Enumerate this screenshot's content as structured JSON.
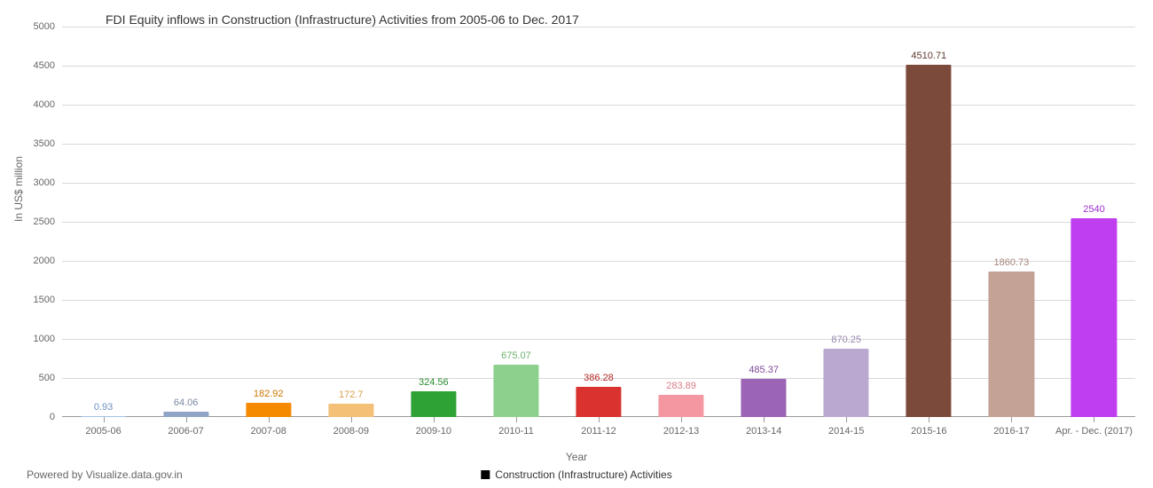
{
  "chart": {
    "type": "bar",
    "title": "FDI Equity inflows in Construction (Infrastructure) Activities from 2005-06 to Dec. 2017",
    "title_fontsize": 14,
    "title_color": "#333333",
    "y_label": "In US$ million",
    "x_label": "Year",
    "axis_label_fontsize": 12,
    "axis_label_color": "#666666",
    "legend_label": "Construction (Infrastructure) Activities",
    "legend_swatch_color": "#000000",
    "footer": "Powered by Visualize.data.gov.in",
    "background_color": "#ffffff",
    "grid_color": "#d9d9d9",
    "axis_line_color": "#999999",
    "tick_label_color": "#666666",
    "tick_label_fontsize": 11,
    "y_min": 0,
    "y_max": 5000,
    "y_tick_step": 500,
    "bar_width_ratio": 0.55,
    "value_label_fontsize": 11,
    "categories": [
      "2005-06",
      "2006-07",
      "2007-08",
      "2008-09",
      "2009-10",
      "2010-11",
      "2011-12",
      "2012-13",
      "2013-14",
      "2014-15",
      "2015-16",
      "2016-17",
      "Apr. - Dec. (2017)"
    ],
    "values": [
      0.93,
      64.06,
      182.92,
      172.7,
      324.56,
      675.07,
      386.28,
      283.89,
      485.37,
      870.25,
      4510.71,
      1860.73,
      2540
    ],
    "bar_colors": [
      "#a4c2e6",
      "#8fa4c6",
      "#f58a00",
      "#f4bf77",
      "#2fa236",
      "#8dd08d",
      "#d9322f",
      "#f497a1",
      "#9c64b5",
      "#bba8d1",
      "#7b4a3b",
      "#c4a295",
      "#bf3eef"
    ],
    "value_label_colors": [
      "#6c8ebf",
      "#7a8aa3",
      "#cc7600",
      "#d9a04f",
      "#2a8a30",
      "#6fb26f",
      "#b52926",
      "#d97d88",
      "#7f4a99",
      "#9a87b0",
      "#5f3a2e",
      "#a3867a",
      "#9f2fcf"
    ]
  }
}
